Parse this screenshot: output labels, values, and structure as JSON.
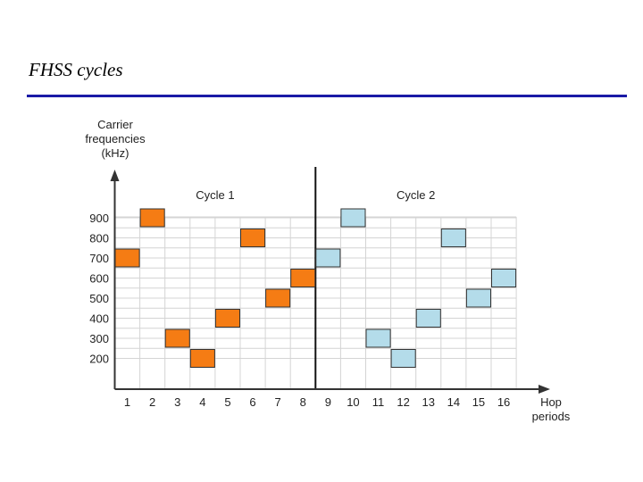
{
  "slide": {
    "title": "FHSS cycles"
  },
  "colors": {
    "cycle1_fill": "#f57c14",
    "cycle2_fill": "#b4dcea",
    "title_rule": "#1a1aa6",
    "grid": "#d4d4d4"
  },
  "chart_data": {
    "type": "scatter",
    "ylabel_lines": [
      "Carrier",
      "frequencies",
      "(kHz)"
    ],
    "xlabel_lines": [
      "Hop",
      "periods"
    ],
    "x": [
      1,
      2,
      3,
      4,
      5,
      6,
      7,
      8,
      9,
      10,
      11,
      12,
      13,
      14,
      15,
      16
    ],
    "x_tick_labels": [
      "1",
      "2",
      "3",
      "4",
      "5",
      "6",
      "7",
      "8",
      "9",
      "10",
      "11",
      "12",
      "13",
      "14",
      "15",
      "16"
    ],
    "y_ticks": [
      200,
      300,
      400,
      500,
      600,
      700,
      800,
      900
    ],
    "y_tick_labels": [
      "200",
      "300",
      "400",
      "500",
      "600",
      "700",
      "800",
      "900"
    ],
    "series": [
      {
        "name": "Cycle 1",
        "color": "#f57c14",
        "x": [
          1,
          2,
          3,
          4,
          5,
          6,
          7,
          8
        ],
        "values": [
          700,
          900,
          300,
          200,
          400,
          800,
          500,
          600
        ]
      },
      {
        "name": "Cycle 2",
        "color": "#b4dcea",
        "x": [
          9,
          10,
          11,
          12,
          13,
          14,
          15,
          16
        ],
        "values": [
          700,
          900,
          300,
          200,
          400,
          800,
          500,
          600
        ]
      }
    ],
    "cycle_labels": [
      "Cycle 1",
      "Cycle 2"
    ],
    "cycle_divider_after": 8
  }
}
